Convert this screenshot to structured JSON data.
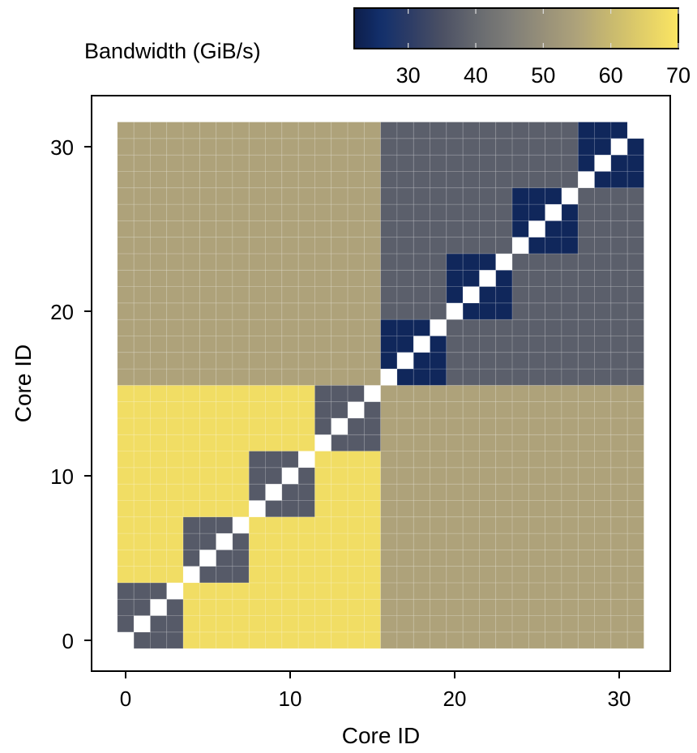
{
  "chart_data": {
    "type": "heatmap",
    "title": "",
    "xlabel": "Core ID",
    "ylabel": "Core ID",
    "x": [
      0,
      1,
      2,
      3,
      4,
      5,
      6,
      7,
      8,
      9,
      10,
      11,
      12,
      13,
      14,
      15,
      16,
      17,
      18,
      19,
      20,
      21,
      22,
      23,
      24,
      25,
      26,
      27,
      28,
      29,
      30,
      31
    ],
    "y": [
      0,
      1,
      2,
      3,
      4,
      5,
      6,
      7,
      8,
      9,
      10,
      11,
      12,
      13,
      14,
      15,
      16,
      17,
      18,
      19,
      20,
      21,
      22,
      23,
      24,
      25,
      26,
      27,
      28,
      29,
      30,
      31
    ],
    "xticks": [
      0,
      10,
      20,
      30
    ],
    "yticks": [
      0,
      10,
      20,
      30
    ],
    "xtick_labels": [
      "0",
      "10",
      "20",
      "30"
    ],
    "ytick_labels": [
      "0",
      "10",
      "20",
      "30"
    ],
    "xlim": [
      -0.5,
      31.5
    ],
    "ylim": [
      -0.5,
      31.5
    ],
    "colorbar": {
      "label": "Bandwidth (GiB/s)",
      "range": [
        22,
        70
      ],
      "ticks": [
        30,
        40,
        50,
        60,
        70
      ],
      "tick_labels": [
        "30",
        "40",
        "50",
        "60",
        "70"
      ],
      "placement": "top-right",
      "colormap_stops": [
        [
          22,
          "#0d1d4a"
        ],
        [
          26,
          "#12306c"
        ],
        [
          30,
          "#2c3b66"
        ],
        [
          35,
          "#4b5064"
        ],
        [
          40,
          "#66696f"
        ],
        [
          45,
          "#7e7d78"
        ],
        [
          50,
          "#979079"
        ],
        [
          55,
          "#aea27a"
        ],
        [
          60,
          "#c8b96f"
        ],
        [
          65,
          "#e2cf68"
        ],
        [
          70,
          "#fbe662"
        ]
      ]
    },
    "diagonal_note_color": "#ffffff",
    "values_rows_by_y": [
      [
        null,
        37,
        37,
        37,
        68,
        68,
        68,
        68,
        68,
        68,
        68,
        68,
        68,
        68,
        68,
        68,
        55,
        55,
        55,
        55,
        55,
        55,
        55,
        55,
        55,
        55,
        55,
        55,
        55,
        55,
        55,
        55
      ],
      [
        37,
        null,
        37,
        37,
        68,
        68,
        68,
        68,
        68,
        68,
        68,
        68,
        68,
        68,
        68,
        68,
        55,
        55,
        55,
        55,
        55,
        55,
        55,
        55,
        55,
        55,
        55,
        55,
        55,
        55,
        55,
        55
      ],
      [
        37,
        37,
        null,
        37,
        68,
        68,
        68,
        68,
        68,
        68,
        68,
        68,
        68,
        68,
        68,
        68,
        55,
        55,
        55,
        55,
        55,
        55,
        55,
        55,
        55,
        55,
        55,
        55,
        55,
        55,
        55,
        55
      ],
      [
        37,
        37,
        37,
        null,
        68,
        68,
        68,
        68,
        68,
        68,
        68,
        68,
        68,
        68,
        68,
        68,
        55,
        55,
        55,
        55,
        55,
        55,
        55,
        55,
        55,
        55,
        55,
        55,
        55,
        55,
        55,
        55
      ],
      [
        68,
        68,
        68,
        68,
        null,
        37,
        37,
        37,
        68,
        68,
        68,
        68,
        68,
        68,
        68,
        68,
        55,
        55,
        55,
        55,
        55,
        55,
        55,
        55,
        55,
        55,
        55,
        55,
        55,
        55,
        55,
        55
      ],
      [
        68,
        68,
        68,
        68,
        37,
        null,
        37,
        37,
        68,
        68,
        68,
        68,
        68,
        68,
        68,
        68,
        55,
        55,
        55,
        55,
        55,
        55,
        55,
        55,
        55,
        55,
        55,
        55,
        55,
        55,
        55,
        55
      ],
      [
        68,
        68,
        68,
        68,
        37,
        37,
        null,
        37,
        68,
        68,
        68,
        68,
        68,
        68,
        68,
        68,
        55,
        55,
        55,
        55,
        55,
        55,
        55,
        55,
        55,
        55,
        55,
        55,
        55,
        55,
        55,
        55
      ],
      [
        68,
        68,
        68,
        68,
        37,
        37,
        37,
        null,
        68,
        68,
        68,
        68,
        68,
        68,
        68,
        68,
        55,
        55,
        55,
        55,
        55,
        55,
        55,
        55,
        55,
        55,
        55,
        55,
        55,
        55,
        55,
        55
      ],
      [
        68,
        68,
        68,
        68,
        68,
        68,
        68,
        68,
        null,
        37,
        37,
        37,
        68,
        68,
        68,
        68,
        55,
        55,
        55,
        55,
        55,
        55,
        55,
        55,
        55,
        55,
        55,
        55,
        55,
        55,
        55,
        55
      ],
      [
        68,
        68,
        68,
        68,
        68,
        68,
        68,
        68,
        37,
        null,
        37,
        37,
        68,
        68,
        68,
        68,
        55,
        55,
        55,
        55,
        55,
        55,
        55,
        55,
        55,
        55,
        55,
        55,
        55,
        55,
        55,
        55
      ],
      [
        68,
        68,
        68,
        68,
        68,
        68,
        68,
        68,
        37,
        37,
        null,
        37,
        68,
        68,
        68,
        68,
        55,
        55,
        55,
        55,
        55,
        55,
        55,
        55,
        55,
        55,
        55,
        55,
        55,
        55,
        55,
        55
      ],
      [
        68,
        68,
        68,
        68,
        68,
        68,
        68,
        68,
        37,
        37,
        37,
        null,
        68,
        68,
        68,
        68,
        55,
        55,
        55,
        55,
        55,
        55,
        55,
        55,
        55,
        55,
        55,
        55,
        55,
        55,
        55,
        55
      ],
      [
        68,
        68,
        68,
        68,
        68,
        68,
        68,
        68,
        68,
        68,
        68,
        68,
        null,
        37,
        37,
        37,
        55,
        55,
        55,
        55,
        55,
        55,
        55,
        55,
        55,
        55,
        55,
        55,
        55,
        55,
        55,
        55
      ],
      [
        68,
        68,
        68,
        68,
        68,
        68,
        68,
        68,
        68,
        68,
        68,
        68,
        37,
        null,
        37,
        37,
        55,
        55,
        55,
        55,
        55,
        55,
        55,
        55,
        55,
        55,
        55,
        55,
        55,
        55,
        55,
        55
      ],
      [
        68,
        68,
        68,
        68,
        68,
        68,
        68,
        68,
        68,
        68,
        68,
        68,
        37,
        37,
        null,
        37,
        55,
        55,
        55,
        55,
        55,
        55,
        55,
        55,
        55,
        55,
        55,
        55,
        55,
        55,
        55,
        55
      ],
      [
        68,
        68,
        68,
        68,
        68,
        68,
        68,
        68,
        68,
        68,
        68,
        68,
        37,
        37,
        37,
        null,
        55,
        55,
        55,
        55,
        55,
        55,
        55,
        55,
        55,
        55,
        55,
        55,
        55,
        55,
        55,
        55
      ],
      [
        55,
        55,
        55,
        55,
        55,
        55,
        55,
        55,
        55,
        55,
        55,
        55,
        55,
        55,
        55,
        55,
        null,
        24,
        24,
        24,
        38,
        38,
        38,
        38,
        38,
        38,
        38,
        38,
        38,
        38,
        38,
        38
      ],
      [
        55,
        55,
        55,
        55,
        55,
        55,
        55,
        55,
        55,
        55,
        55,
        55,
        55,
        55,
        55,
        55,
        24,
        null,
        24,
        24,
        38,
        38,
        38,
        38,
        38,
        38,
        38,
        38,
        38,
        38,
        38,
        38
      ],
      [
        55,
        55,
        55,
        55,
        55,
        55,
        55,
        55,
        55,
        55,
        55,
        55,
        55,
        55,
        55,
        55,
        24,
        24,
        null,
        24,
        38,
        38,
        38,
        38,
        38,
        38,
        38,
        38,
        38,
        38,
        38,
        38
      ],
      [
        55,
        55,
        55,
        55,
        55,
        55,
        55,
        55,
        55,
        55,
        55,
        55,
        55,
        55,
        55,
        55,
        24,
        24,
        24,
        null,
        38,
        38,
        38,
        38,
        38,
        38,
        38,
        38,
        38,
        38,
        38,
        38
      ],
      [
        55,
        55,
        55,
        55,
        55,
        55,
        55,
        55,
        55,
        55,
        55,
        55,
        55,
        55,
        55,
        55,
        38,
        38,
        38,
        38,
        null,
        24,
        24,
        24,
        38,
        38,
        38,
        38,
        38,
        38,
        38,
        38
      ],
      [
        55,
        55,
        55,
        55,
        55,
        55,
        55,
        55,
        55,
        55,
        55,
        55,
        55,
        55,
        55,
        55,
        38,
        38,
        38,
        38,
        24,
        null,
        24,
        24,
        38,
        38,
        38,
        38,
        38,
        38,
        38,
        38
      ],
      [
        55,
        55,
        55,
        55,
        55,
        55,
        55,
        55,
        55,
        55,
        55,
        55,
        55,
        55,
        55,
        55,
        38,
        38,
        38,
        38,
        24,
        24,
        null,
        24,
        38,
        38,
        38,
        38,
        38,
        38,
        38,
        38
      ],
      [
        55,
        55,
        55,
        55,
        55,
        55,
        55,
        55,
        55,
        55,
        55,
        55,
        55,
        55,
        55,
        55,
        38,
        38,
        38,
        38,
        24,
        24,
        24,
        null,
        38,
        38,
        38,
        38,
        38,
        38,
        38,
        38
      ],
      [
        55,
        55,
        55,
        55,
        55,
        55,
        55,
        55,
        55,
        55,
        55,
        55,
        55,
        55,
        55,
        55,
        38,
        38,
        38,
        38,
        38,
        38,
        38,
        38,
        null,
        24,
        24,
        24,
        38,
        38,
        38,
        38
      ],
      [
        55,
        55,
        55,
        55,
        55,
        55,
        55,
        55,
        55,
        55,
        55,
        55,
        55,
        55,
        55,
        55,
        38,
        38,
        38,
        38,
        38,
        38,
        38,
        38,
        24,
        null,
        24,
        24,
        38,
        38,
        38,
        38
      ],
      [
        55,
        55,
        55,
        55,
        55,
        55,
        55,
        55,
        55,
        55,
        55,
        55,
        55,
        55,
        55,
        55,
        38,
        38,
        38,
        38,
        38,
        38,
        38,
        38,
        24,
        24,
        null,
        24,
        38,
        38,
        38,
        38
      ],
      [
        55,
        55,
        55,
        55,
        55,
        55,
        55,
        55,
        55,
        55,
        55,
        55,
        55,
        55,
        55,
        55,
        38,
        38,
        38,
        38,
        38,
        38,
        38,
        38,
        24,
        24,
        24,
        null,
        38,
        38,
        38,
        38
      ],
      [
        55,
        55,
        55,
        55,
        55,
        55,
        55,
        55,
        55,
        55,
        55,
        55,
        55,
        55,
        55,
        55,
        38,
        38,
        38,
        38,
        38,
        38,
        38,
        38,
        38,
        38,
        38,
        38,
        null,
        24,
        24,
        24
      ],
      [
        55,
        55,
        55,
        55,
        55,
        55,
        55,
        55,
        55,
        55,
        55,
        55,
        55,
        55,
        55,
        55,
        38,
        38,
        38,
        38,
        38,
        38,
        38,
        38,
        38,
        38,
        38,
        38,
        24,
        null,
        24,
        24
      ],
      [
        55,
        55,
        55,
        55,
        55,
        55,
        55,
        55,
        55,
        55,
        55,
        55,
        55,
        55,
        55,
        55,
        38,
        38,
        38,
        38,
        38,
        38,
        38,
        38,
        38,
        38,
        38,
        38,
        24,
        24,
        null,
        24
      ],
      [
        55,
        55,
        55,
        55,
        55,
        55,
        55,
        55,
        55,
        55,
        55,
        55,
        55,
        55,
        55,
        55,
        38,
        38,
        38,
        38,
        38,
        38,
        38,
        38,
        38,
        38,
        38,
        38,
        24,
        24,
        24,
        null
      ]
    ]
  }
}
